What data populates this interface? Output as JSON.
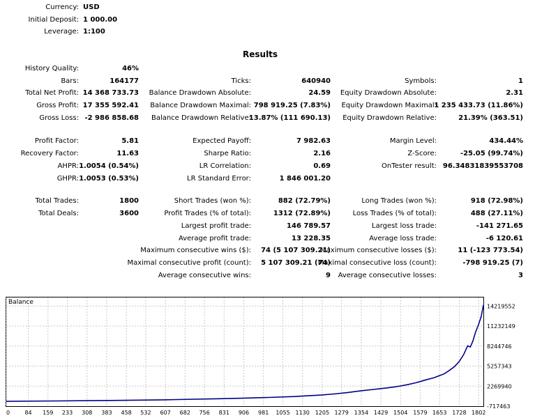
{
  "header": {
    "currency": {
      "label": "Currency:",
      "value": "USD"
    },
    "initial_deposit": {
      "label": "Initial Deposit:",
      "value": "1 000.00"
    },
    "leverage": {
      "label": "Leverage:",
      "value": "1:100"
    }
  },
  "results_title": "Results",
  "col1": {
    "history_quality": {
      "label": "History Quality:",
      "value": "46%"
    },
    "bars": {
      "label": "Bars:",
      "value": "164177"
    },
    "total_net_profit": {
      "label": "Total Net Profit:",
      "value": "14 368 733.73"
    },
    "gross_profit": {
      "label": "Gross Profit:",
      "value": "17 355 592.41"
    },
    "gross_loss": {
      "label": "Gross Loss:",
      "value": "-2 986 858.68"
    },
    "profit_factor": {
      "label": "Profit Factor:",
      "value": "5.81"
    },
    "recovery_factor": {
      "label": "Recovery Factor:",
      "value": "11.63"
    },
    "ahpr": {
      "label": "AHPR:",
      "value": "1.0054 (0.54%)"
    },
    "ghpr": {
      "label": "GHPR:",
      "value": "1.0053 (0.53%)"
    },
    "total_trades": {
      "label": "Total Trades:",
      "value": "1800"
    },
    "total_deals": {
      "label": "Total Deals:",
      "value": "3600"
    }
  },
  "col2": {
    "ticks": {
      "label": "Ticks:",
      "value": "640940"
    },
    "balance_dd_abs": {
      "label": "Balance Drawdown Absolute:",
      "value": "24.59"
    },
    "balance_dd_max": {
      "label": "Balance Drawdown Maximal:",
      "value": "798 919.25 (7.83%)"
    },
    "balance_dd_rel": {
      "label": "Balance Drawdown Relative:",
      "value": "13.87% (111 690.13)"
    },
    "expected_payoff": {
      "label": "Expected Payoff:",
      "value": "7 982.63"
    },
    "sharpe_ratio": {
      "label": "Sharpe Ratio:",
      "value": "2.16"
    },
    "lr_correlation": {
      "label": "LR Correlation:",
      "value": "0.69"
    },
    "lr_std_error": {
      "label": "LR Standard Error:",
      "value": "1 846 001.20"
    },
    "short_trades": {
      "label": "Short Trades (won %):",
      "value": "882 (72.79%)"
    },
    "profit_trades": {
      "label": "Profit Trades (% of total):",
      "value": "1312 (72.89%)"
    },
    "largest_profit": {
      "label": "Largest profit trade:",
      "value": "146 789.57"
    },
    "average_profit": {
      "label": "Average profit trade:",
      "value": "13 228.35"
    },
    "max_consec_wins": {
      "label": "Maximum consecutive wins ($):",
      "value": "74 (5 107 309.21)"
    },
    "maximal_consec_profit": {
      "label": "Maximal consecutive profit (count):",
      "value": "5 107 309.21 (74)"
    },
    "avg_consec_wins": {
      "label": "Average consecutive wins:",
      "value": "9"
    }
  },
  "col3": {
    "symbols": {
      "label": "Symbols:",
      "value": "1"
    },
    "equity_dd_abs": {
      "label": "Equity Drawdown Absolute:",
      "value": "2.31"
    },
    "equity_dd_max": {
      "label": "Equity Drawdown Maximal:",
      "value": "1 235 433.73 (11.86%)"
    },
    "equity_dd_rel": {
      "label": "Equity Drawdown Relative:",
      "value": "21.39% (363.51)"
    },
    "margin_level": {
      "label": "Margin Level:",
      "value": "434.44%"
    },
    "z_score": {
      "label": "Z-Score:",
      "value": "-25.05 (99.74%)"
    },
    "ontester": {
      "label": "OnTester result:",
      "value": "96.34831839553708"
    },
    "long_trades": {
      "label": "Long Trades (won %):",
      "value": "918 (72.98%)"
    },
    "loss_trades": {
      "label": "Loss Trades (% of total):",
      "value": "488 (27.11%)"
    },
    "largest_loss": {
      "label": "Largest loss trade:",
      "value": "-141 271.65"
    },
    "average_loss": {
      "label": "Average loss trade:",
      "value": "-6 120.61"
    },
    "max_consec_losses": {
      "label": "Maximum consecutive losses ($):",
      "value": "11 (-123 773.54)"
    },
    "maximal_consec_loss": {
      "label": "Maximal consecutive loss (count):",
      "value": "-798 919.25 (7)"
    },
    "avg_consec_losses": {
      "label": "Average consecutive losses:",
      "value": "3"
    }
  },
  "chart_data": {
    "type": "line",
    "title": "Balance",
    "line_color": "#00008b",
    "ylim": [
      -717463,
      15500000
    ],
    "y_ticks": [
      14219552,
      11232149,
      8244746,
      5257343,
      2269940,
      -717463
    ],
    "y_tick_labels": [
      "14219552",
      "11232149",
      "8244746",
      "5257343",
      "2269940",
      "-717463"
    ],
    "x_ticks": [
      0,
      84,
      159,
      233,
      308,
      383,
      458,
      532,
      607,
      682,
      756,
      831,
      906,
      981,
      1055,
      1130,
      1205,
      1279,
      1354,
      1429,
      1504,
      1579,
      1653,
      1728,
      1802
    ],
    "x_tick_labels": [
      "0",
      "84",
      "159",
      "233",
      "308",
      "383",
      "458",
      "532",
      "607",
      "682",
      "756",
      "831",
      "906",
      "981",
      "1055",
      "1130",
      "1205",
      "1279",
      "1354",
      "1429",
      "1504",
      "1579",
      "1653",
      "1728",
      "1802"
    ],
    "xlim": [
      0,
      1820
    ],
    "x": [
      0,
      200,
      400,
      600,
      800,
      900,
      1000,
      1100,
      1150,
      1200,
      1250,
      1300,
      1354,
      1400,
      1429,
      1450,
      1480,
      1504,
      1530,
      1560,
      1579,
      1600,
      1630,
      1653,
      1670,
      1690,
      1710,
      1728,
      1745,
      1760,
      1770,
      1780,
      1790,
      1802,
      1812,
      1820
    ],
    "y": [
      1000,
      60000,
      130000,
      230000,
      380000,
      470000,
      580000,
      720000,
      830000,
      940000,
      1100000,
      1300000,
      1580000,
      1780000,
      1900000,
      2000000,
      2150000,
      2300000,
      2480000,
      2750000,
      2950000,
      3200000,
      3500000,
      3850000,
      4100000,
      4600000,
      5200000,
      5950000,
      7000000,
      8300000,
      8100000,
      9000000,
      10300000,
      11500000,
      12700000,
      14368733
    ]
  }
}
